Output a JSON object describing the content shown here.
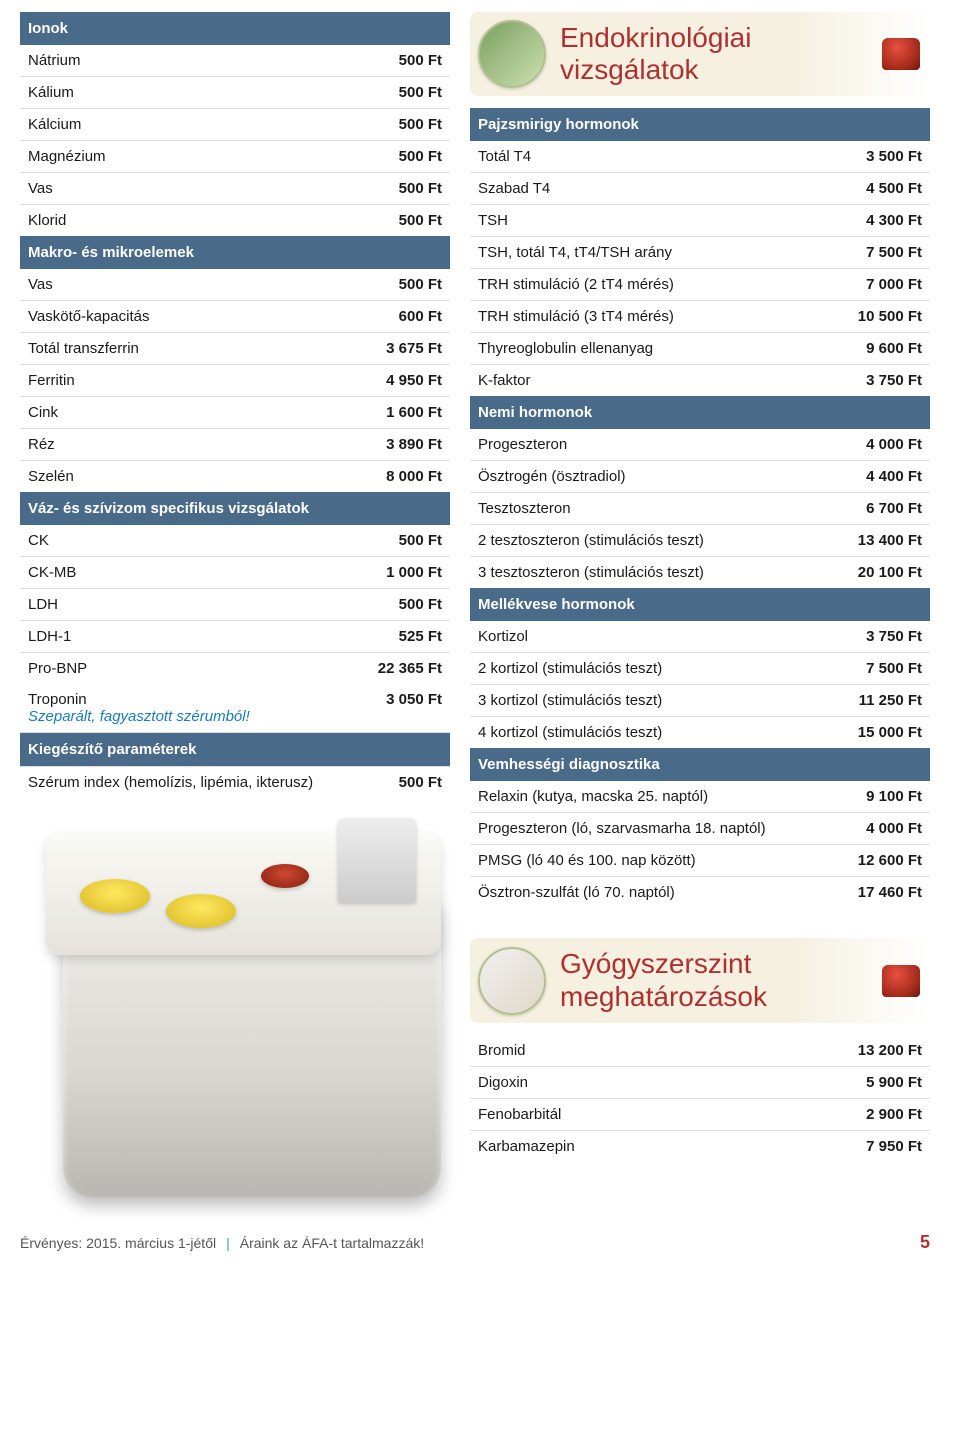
{
  "colors": {
    "header_row_bg": "#4a6a8a",
    "header_row_text": "#ffffff",
    "section_title_color": "#b03030",
    "note_color": "#1a7bb9",
    "row_border": "#dddddd",
    "page_bg": "#ffffff"
  },
  "left": {
    "ion_header": "Ionok",
    "ion_rows": [
      {
        "label": "Nátrium",
        "price": "500 Ft"
      },
      {
        "label": "Kálium",
        "price": "500 Ft"
      },
      {
        "label": "Kálcium",
        "price": "500 Ft"
      },
      {
        "label": "Magnézium",
        "price": "500 Ft"
      },
      {
        "label": "Vas",
        "price": "500 Ft"
      },
      {
        "label": "Klorid",
        "price": "500 Ft"
      }
    ],
    "macro_header": "Makro- és mikroelemek",
    "macro_rows": [
      {
        "label": "Vas",
        "price": "500 Ft"
      },
      {
        "label": "Vaskötő-kapacitás",
        "price": "600 Ft"
      },
      {
        "label": "Totál transzferrin",
        "price": "3 675 Ft"
      },
      {
        "label": "Ferritin",
        "price": "4 950 Ft"
      },
      {
        "label": "Cink",
        "price": "1 600 Ft"
      },
      {
        "label": "Réz",
        "price": "3 890 Ft"
      },
      {
        "label": "Szelén",
        "price": "8 000 Ft"
      }
    ],
    "muscle_header": "Váz- és szívizom specifikus vizsgálatok",
    "muscle_rows": [
      {
        "label": "CK",
        "price": "500 Ft"
      },
      {
        "label": "CK-MB",
        "price": "1 000 Ft"
      },
      {
        "label": "LDH",
        "price": "500 Ft"
      },
      {
        "label": "LDH-1",
        "price": "525 Ft"
      },
      {
        "label": "Pro-BNP",
        "price": "22 365 Ft"
      }
    ],
    "troponin_label": "Troponin",
    "troponin_note": "Szeparált, fagyasztott szérumból!",
    "troponin_price": "3 050 Ft",
    "suppl_header": "Kiegészítő paraméterek",
    "suppl_row": {
      "label": "Szérum index (hemolízis, lipémia, ikterusz)",
      "price": "500 Ft"
    }
  },
  "endocrine": {
    "title": "Endokrinológiai vizsgálatok",
    "thyroid_header": "Pajzsmirigy hormonok",
    "thyroid_rows": [
      {
        "label": "Totál T4",
        "price": "3 500 Ft"
      },
      {
        "label": "Szabad T4",
        "price": "4 500 Ft"
      },
      {
        "label": "TSH",
        "price": "4 300 Ft"
      },
      {
        "label": "TSH, totál T4, tT4/TSH arány",
        "price": "7 500 Ft"
      },
      {
        "label": "TRH stimuláció (2 tT4 mérés)",
        "price": "7 000 Ft"
      },
      {
        "label": "TRH stimuláció (3 tT4 mérés)",
        "price": "10 500 Ft"
      },
      {
        "label": "Thyreoglobulin ellenanyag",
        "price": "9 600 Ft"
      },
      {
        "label": "K-faktor",
        "price": "3 750 Ft"
      }
    ],
    "sex_header": "Nemi hormonok",
    "sex_rows": [
      {
        "label": "Progeszteron",
        "price": "4 000 Ft"
      },
      {
        "label": "Ösztrogén (ösztradiol)",
        "price": "4 400 Ft"
      },
      {
        "label": "Tesztoszteron",
        "price": "6 700 Ft"
      },
      {
        "label": "2 tesztoszteron (stimulációs teszt)",
        "price": "13 400 Ft"
      },
      {
        "label": "3 tesztoszteron (stimulációs teszt)",
        "price": "20 100 Ft"
      }
    ],
    "adrenal_header": "Mellékvese hormonok",
    "adrenal_rows": [
      {
        "label": "Kortizol",
        "price": "3 750 Ft"
      },
      {
        "label": "2 kortizol (stimulációs teszt)",
        "price": "7 500 Ft"
      },
      {
        "label": "3 kortizol (stimulációs teszt)",
        "price": "11 250 Ft"
      },
      {
        "label": "4 kortizol (stimulációs teszt)",
        "price": "15 000 Ft"
      }
    ],
    "pregnancy_header": "Vemhességi diagnosztika",
    "pregnancy_rows": [
      {
        "label": "Relaxin (kutya, macska 25. naptól)",
        "price": "9 100 Ft"
      },
      {
        "label": "Progeszteron (ló, szarvasmarha 18. naptól)",
        "price": "4 000 Ft"
      },
      {
        "label": "PMSG (ló 40 és 100. nap között)",
        "price": "12 600 Ft"
      },
      {
        "label": "Ösztron-szulfát (ló 70. naptól)",
        "price": "17 460 Ft"
      }
    ]
  },
  "drug": {
    "title": "Gyógyszerszint meghatározások",
    "rows": [
      {
        "label": "Bromid",
        "price": "13 200 Ft"
      },
      {
        "label": "Digoxin",
        "price": "5 900 Ft"
      },
      {
        "label": "Fenobarbitál",
        "price": "2 900 Ft"
      },
      {
        "label": "Karbamazepin",
        "price": "7 950 Ft"
      }
    ]
  },
  "footer": {
    "valid": "Érvényes: 2015. március 1-jétől",
    "vat": "Áraink az ÁFA-t tartalmazzák!",
    "page": "5"
  }
}
